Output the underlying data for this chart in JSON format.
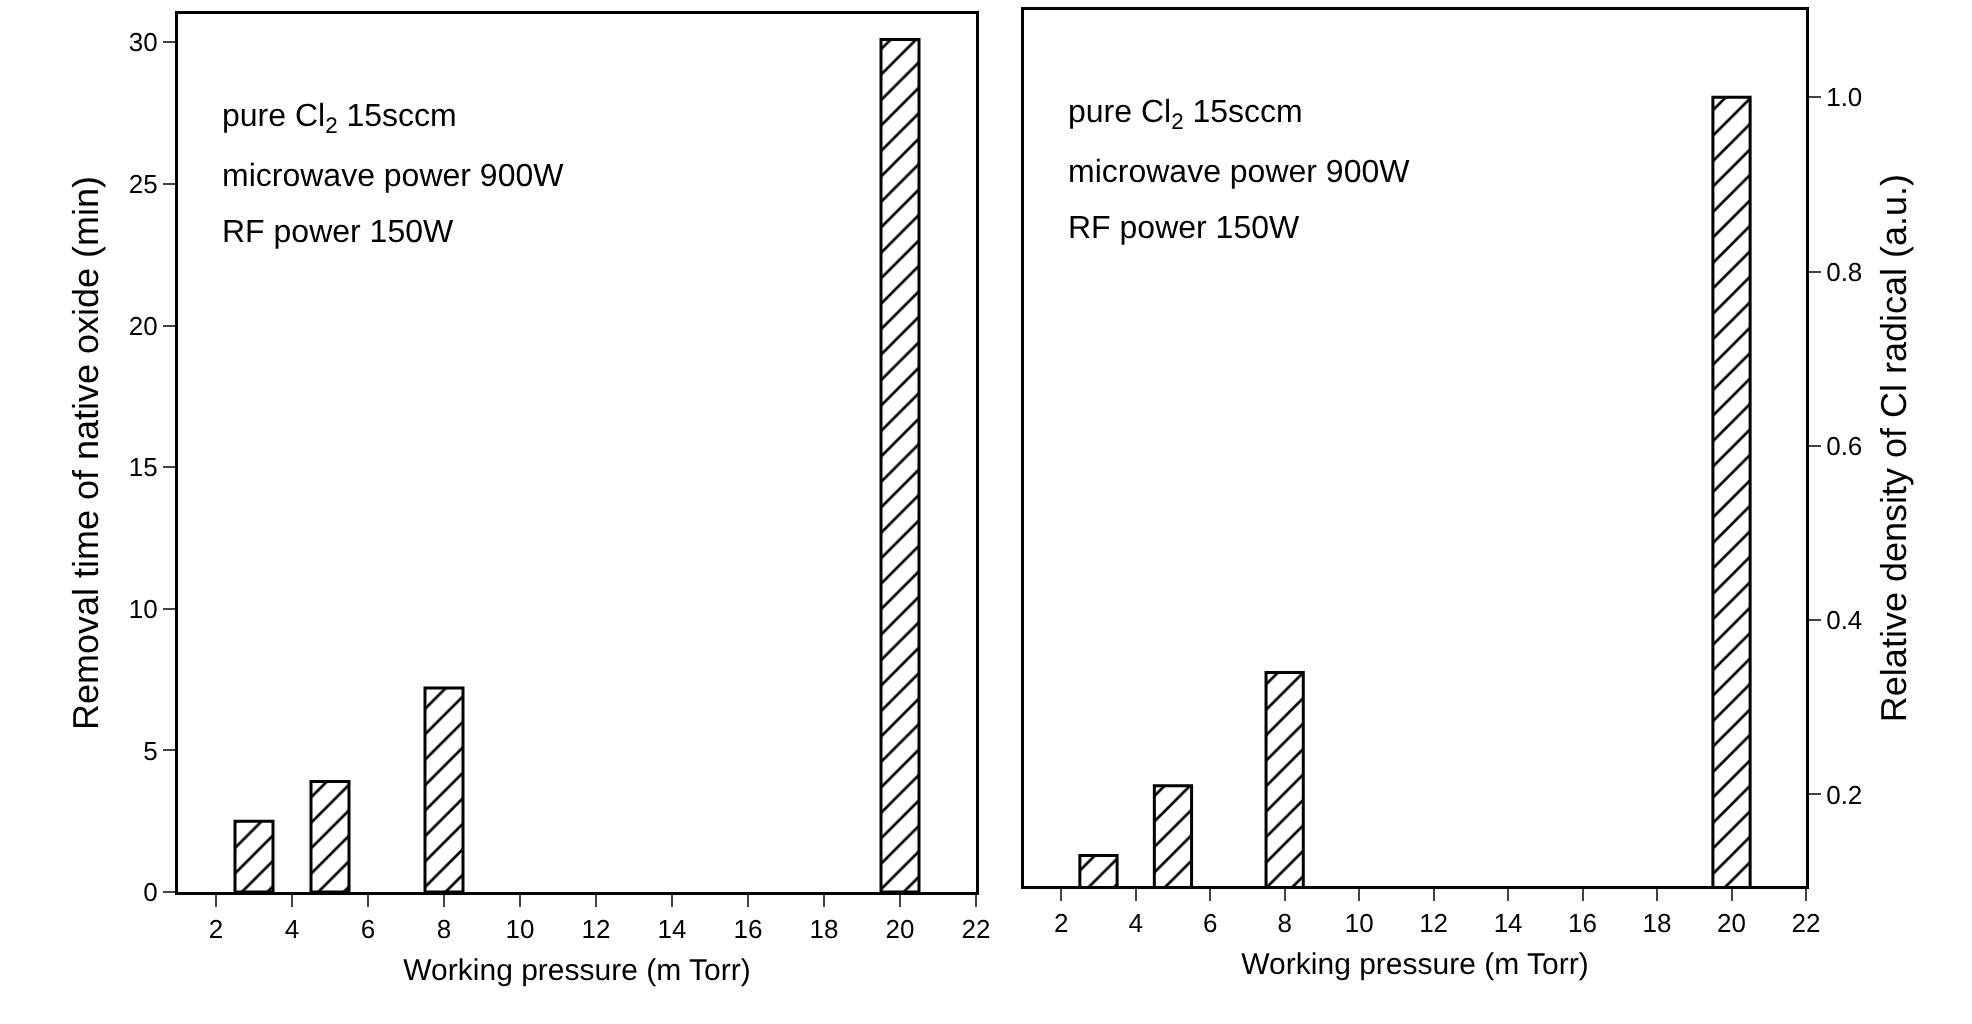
{
  "chart_data": [
    {
      "type": "bar",
      "x": [
        3,
        5,
        8,
        20
      ],
      "xlabel": "Working pressure (m Torr)",
      "ylabel": "Removal time of native oxide (min)",
      "series": [
        {
          "color": "#000000",
          "values": [
            2.5,
            3.9,
            7.2,
            30.1
          ]
        }
      ],
      "xlim": [
        1,
        22
      ],
      "xticks": [
        2,
        4,
        6,
        8,
        10,
        12,
        14,
        16,
        18,
        20,
        22
      ],
      "ylim": [
        0,
        31
      ],
      "yticks": [
        0,
        5,
        10,
        15,
        20,
        25,
        30
      ],
      "annotations": [
        "pure Cl$_{2}$ 15sccm",
        "microwave power 900W",
        "RF power 150W"
      ]
    },
    {
      "type": "bar",
      "x": [
        3,
        5,
        8,
        20
      ],
      "xlabel": "Working pressure (m Torr)",
      "y2label": "Relative density of Cl radical (a.u.)",
      "series": [
        {
          "color": "#000000",
          "axis": "y2",
          "values": [
            0.13,
            0.21,
            0.34,
            1.0
          ]
        }
      ],
      "xlim": [
        1,
        22
      ],
      "xticks": [
        2,
        4,
        6,
        8,
        10,
        12,
        14,
        16,
        18,
        20,
        22
      ],
      "y2lim": [
        0.095,
        1.1
      ],
      "y2ticks": [
        0.2,
        0.4,
        0.6,
        0.8,
        {
          "value": 1.0,
          "label": "1.0"
        }
      ],
      "annotations": [
        "pure Cl$_{2}$ 15sccm",
        "microwave power 900W",
        "RF power 150W"
      ]
    }
  ]
}
